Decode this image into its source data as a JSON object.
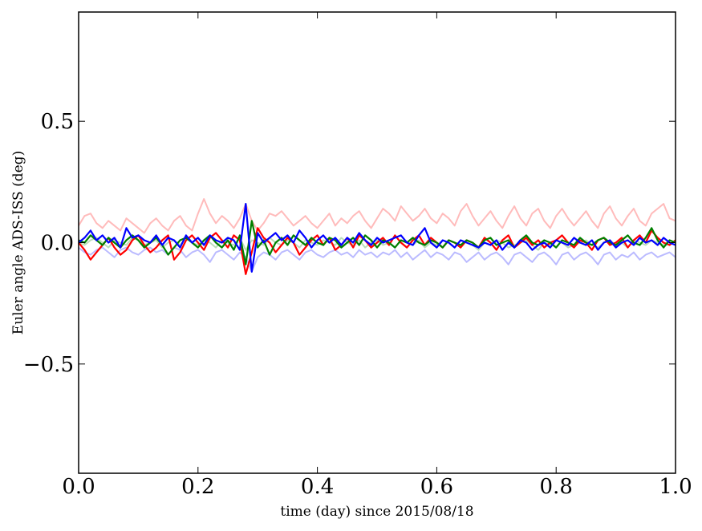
{
  "chart_data": {
    "type": "line",
    "title": "",
    "xlabel": "time (day) since 2015/08/18",
    "ylabel": "Euler angle ADS-ISS (deg)",
    "xlim": [
      0.0,
      1.0
    ],
    "ylim": [
      -0.95,
      0.95
    ],
    "x_ticks": [
      0.0,
      0.2,
      0.4,
      0.6,
      0.8,
      1.0
    ],
    "x_tick_labels": [
      "0.0",
      "0.2",
      "0.4",
      "0.6",
      "0.8",
      "1.0"
    ],
    "y_ticks": [
      -0.5,
      0.0,
      0.5
    ],
    "y_tick_labels": [
      "−0.5",
      "0.0",
      "0.5"
    ],
    "grid": false,
    "legend": "none",
    "x": [
      0.0,
      0.01,
      0.02,
      0.03,
      0.04,
      0.05,
      0.06,
      0.07,
      0.08,
      0.09,
      0.1,
      0.11,
      0.12,
      0.13,
      0.14,
      0.15,
      0.16,
      0.17,
      0.18,
      0.19,
      0.2,
      0.21,
      0.22,
      0.23,
      0.24,
      0.25,
      0.26,
      0.27,
      0.28,
      0.29,
      0.3,
      0.31,
      0.32,
      0.33,
      0.34,
      0.35,
      0.36,
      0.37,
      0.38,
      0.39,
      0.4,
      0.41,
      0.42,
      0.43,
      0.44,
      0.45,
      0.46,
      0.47,
      0.48,
      0.49,
      0.5,
      0.51,
      0.52,
      0.53,
      0.54,
      0.55,
      0.56,
      0.57,
      0.58,
      0.59,
      0.6,
      0.61,
      0.62,
      0.63,
      0.64,
      0.65,
      0.66,
      0.67,
      0.68,
      0.69,
      0.7,
      0.71,
      0.72,
      0.73,
      0.74,
      0.75,
      0.76,
      0.77,
      0.78,
      0.79,
      0.8,
      0.81,
      0.82,
      0.83,
      0.84,
      0.85,
      0.86,
      0.87,
      0.88,
      0.89,
      0.9,
      0.91,
      0.92,
      0.93,
      0.94,
      0.95,
      0.96,
      0.97,
      0.98,
      0.99,
      1.0
    ],
    "series": [
      {
        "color": "#ffbbbb",
        "values": [
          0.07,
          0.11,
          0.12,
          0.08,
          0.06,
          0.09,
          0.07,
          0.05,
          0.1,
          0.08,
          0.06,
          0.04,
          0.08,
          0.1,
          0.07,
          0.05,
          0.09,
          0.11,
          0.07,
          0.05,
          0.12,
          0.18,
          0.12,
          0.08,
          0.11,
          0.09,
          0.06,
          0.1,
          0.16,
          0.09,
          0.05,
          0.08,
          0.12,
          0.11,
          0.13,
          0.1,
          0.07,
          0.09,
          0.11,
          0.08,
          0.06,
          0.09,
          0.12,
          0.07,
          0.1,
          0.08,
          0.11,
          0.13,
          0.09,
          0.06,
          0.1,
          0.14,
          0.12,
          0.09,
          0.15,
          0.12,
          0.09,
          0.11,
          0.14,
          0.1,
          0.08,
          0.12,
          0.1,
          0.07,
          0.13,
          0.16,
          0.11,
          0.07,
          0.1,
          0.13,
          0.09,
          0.06,
          0.11,
          0.15,
          0.1,
          0.07,
          0.12,
          0.14,
          0.09,
          0.06,
          0.11,
          0.14,
          0.1,
          0.07,
          0.1,
          0.13,
          0.09,
          0.06,
          0.12,
          0.15,
          0.1,
          0.07,
          0.11,
          0.14,
          0.09,
          0.07,
          0.12,
          0.14,
          0.16,
          0.1,
          0.09
        ]
      },
      {
        "color": "#bbbbff",
        "values": [
          -0.02,
          -0.04,
          -0.05,
          -0.03,
          -0.02,
          -0.04,
          -0.06,
          -0.03,
          -0.02,
          -0.04,
          -0.05,
          -0.03,
          -0.02,
          -0.04,
          -0.03,
          -0.05,
          -0.02,
          -0.03,
          -0.06,
          -0.04,
          -0.03,
          -0.05,
          -0.08,
          -0.04,
          -0.03,
          -0.05,
          -0.07,
          -0.04,
          -0.06,
          -0.12,
          -0.06,
          -0.04,
          -0.05,
          -0.07,
          -0.04,
          -0.03,
          -0.05,
          -0.07,
          -0.04,
          -0.03,
          -0.05,
          -0.06,
          -0.04,
          -0.03,
          -0.05,
          -0.04,
          -0.06,
          -0.03,
          -0.05,
          -0.04,
          -0.06,
          -0.04,
          -0.05,
          -0.03,
          -0.06,
          -0.04,
          -0.07,
          -0.05,
          -0.03,
          -0.06,
          -0.04,
          -0.05,
          -0.07,
          -0.04,
          -0.05,
          -0.08,
          -0.06,
          -0.04,
          -0.07,
          -0.05,
          -0.04,
          -0.06,
          -0.09,
          -0.05,
          -0.04,
          -0.06,
          -0.08,
          -0.05,
          -0.04,
          -0.06,
          -0.09,
          -0.05,
          -0.04,
          -0.07,
          -0.05,
          -0.04,
          -0.06,
          -0.09,
          -0.05,
          -0.04,
          -0.07,
          -0.05,
          -0.06,
          -0.04,
          -0.07,
          -0.05,
          -0.04,
          -0.06,
          -0.05,
          -0.04,
          -0.06
        ]
      },
      {
        "color": "#bbddbb",
        "values": [
          0.0,
          -0.01,
          0.01,
          0.02,
          0.0,
          -0.02,
          0.01,
          0.0,
          -0.01,
          0.02,
          0.01,
          -0.01,
          0.0,
          0.01,
          -0.02,
          0.0,
          0.01,
          -0.01,
          0.02,
          0.0,
          -0.01,
          0.01,
          0.0,
          -0.02,
          0.01,
          0.0,
          -0.01,
          0.02,
          -0.03,
          0.01,
          0.0,
          -0.01,
          0.02,
          0.0,
          -0.01,
          0.01,
          0.0,
          -0.02,
          0.01,
          0.0,
          -0.01,
          0.01,
          0.0,
          -0.01,
          0.02,
          0.0,
          -0.01,
          0.01,
          -0.02,
          0.0,
          0.01,
          -0.01,
          0.0,
          -0.02,
          0.01,
          0.0,
          -0.01,
          0.01,
          -0.02,
          0.0,
          -0.01,
          0.01,
          0.0,
          -0.02,
          0.01,
          0.0,
          -0.01,
          -0.03,
          0.0,
          -0.01,
          0.01,
          0.0,
          -0.02,
          -0.01,
          0.0,
          0.01,
          -0.01,
          -0.03,
          0.0,
          -0.01,
          0.01,
          0.0,
          -0.02,
          -0.01,
          0.0,
          0.01,
          -0.01,
          -0.02,
          0.0,
          0.01,
          -0.01,
          0.0,
          -0.02,
          0.01,
          0.0,
          -0.01,
          0.01,
          0.0,
          -0.01,
          0.01,
          0.0
        ]
      },
      {
        "color": "#ff0000",
        "values": [
          0.0,
          -0.03,
          -0.07,
          -0.04,
          -0.01,
          0.02,
          -0.02,
          -0.05,
          -0.03,
          0.01,
          0.03,
          -0.01,
          -0.04,
          -0.02,
          0.01,
          0.03,
          -0.07,
          -0.04,
          0.01,
          0.03,
          0.0,
          -0.03,
          0.02,
          0.04,
          0.01,
          -0.02,
          0.03,
          0.01,
          -0.13,
          -0.04,
          0.06,
          0.02,
          0.0,
          -0.04,
          -0.01,
          0.02,
          0.0,
          -0.05,
          -0.02,
          0.01,
          0.03,
          -0.01,
          0.02,
          -0.03,
          -0.01,
          0.02,
          -0.02,
          0.03,
          0.01,
          -0.02,
          0.0,
          0.02,
          -0.01,
          0.03,
          0.0,
          -0.02,
          0.01,
          0.03,
          -0.01,
          0.02,
          0.0,
          -0.02,
          0.01,
          0.0,
          -0.02,
          0.01,
          0.0,
          -0.02,
          0.02,
          0.0,
          -0.03,
          0.01,
          0.03,
          -0.02,
          0.0,
          0.02,
          -0.01,
          0.01,
          -0.02,
          0.0,
          0.01,
          0.03,
          0.0,
          -0.02,
          0.01,
          0.0,
          -0.03,
          0.01,
          0.02,
          -0.01,
          0.0,
          0.02,
          -0.02,
          0.01,
          0.03,
          0.0,
          0.05,
          0.02,
          0.0,
          -0.01,
          0.01
        ]
      },
      {
        "color": "#008000",
        "values": [
          0.01,
          0.0,
          0.03,
          0.01,
          -0.01,
          0.02,
          0.0,
          -0.02,
          0.01,
          0.03,
          0.01,
          -0.02,
          0.0,
          0.02,
          -0.01,
          -0.05,
          -0.02,
          0.01,
          0.02,
          0.0,
          -0.02,
          0.01,
          0.03,
          0.0,
          -0.02,
          0.01,
          -0.03,
          0.03,
          -0.09,
          0.09,
          -0.02,
          0.01,
          -0.05,
          0.0,
          0.02,
          -0.01,
          0.03,
          0.01,
          -0.01,
          0.02,
          0.0,
          -0.01,
          0.02,
          0.01,
          -0.02,
          0.0,
          0.02,
          -0.01,
          0.03,
          0.01,
          -0.02,
          0.01,
          0.0,
          -0.02,
          0.01,
          0.0,
          0.02,
          0.0,
          -0.01,
          0.01,
          0.0,
          -0.02,
          0.01,
          0.0,
          -0.01,
          0.01,
          0.0,
          -0.02,
          0.01,
          0.02,
          -0.01,
          0.0,
          0.01,
          -0.02,
          0.01,
          0.03,
          0.0,
          -0.01,
          0.01,
          0.0,
          -0.02,
          0.01,
          0.0,
          -0.01,
          0.02,
          0.0,
          -0.01,
          0.01,
          0.02,
          0.0,
          -0.01,
          0.01,
          0.03,
          0.0,
          -0.01,
          0.02,
          0.06,
          0.01,
          -0.02,
          0.01,
          0.0
        ]
      },
      {
        "color": "#0000ff",
        "values": [
          0.0,
          0.02,
          0.05,
          0.01,
          0.03,
          0.0,
          0.02,
          -0.02,
          0.06,
          0.02,
          0.03,
          0.01,
          0.0,
          0.03,
          -0.01,
          0.02,
          0.01,
          -0.02,
          0.03,
          0.0,
          0.02,
          -0.01,
          0.03,
          0.01,
          0.0,
          0.02,
          0.01,
          -0.03,
          0.16,
          -0.12,
          0.04,
          0.0,
          0.02,
          0.04,
          0.01,
          0.03,
          0.0,
          0.05,
          0.02,
          -0.02,
          0.01,
          0.03,
          0.0,
          0.02,
          -0.01,
          0.02,
          0.0,
          0.04,
          0.01,
          -0.01,
          0.02,
          0.0,
          0.01,
          0.02,
          0.03,
          0.0,
          -0.01,
          0.03,
          0.06,
          0.0,
          -0.02,
          0.01,
          0.0,
          -0.02,
          0.01,
          0.0,
          -0.01,
          -0.02,
          0.0,
          -0.01,
          0.01,
          -0.03,
          0.0,
          -0.02,
          0.01,
          0.0,
          -0.03,
          -0.01,
          0.0,
          -0.02,
          0.01,
          0.0,
          -0.01,
          0.02,
          0.0,
          -0.01,
          0.01,
          -0.03,
          0.0,
          0.01,
          -0.02,
          0.0,
          0.01,
          -0.01,
          0.02,
          0.0,
          0.01,
          -0.01,
          0.02,
          0.0,
          -0.01
        ]
      }
    ]
  }
}
